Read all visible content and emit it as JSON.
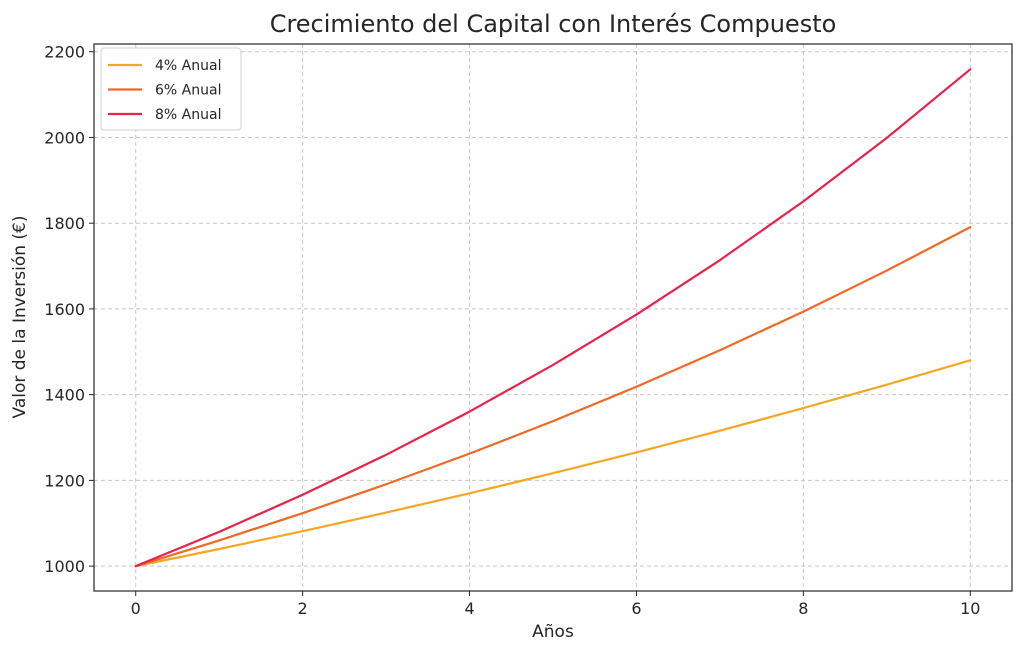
{
  "chart_data": {
    "type": "line",
    "title": "Crecimiento del Capital con Interés Compuesto",
    "xlabel": "Años",
    "ylabel": "Valor de la Inversión (€)",
    "x": [
      0,
      1,
      2,
      3,
      4,
      5,
      6,
      7,
      8,
      9,
      10
    ],
    "xlim": [
      -0.5,
      10.5
    ],
    "ylim": [
      942,
      2218
    ],
    "xticks": [
      0,
      2,
      4,
      6,
      8,
      10
    ],
    "yticks": [
      1000,
      1200,
      1400,
      1600,
      1800,
      2000,
      2200
    ],
    "xtick_labels": [
      "0",
      "2",
      "4",
      "6",
      "8",
      "10"
    ],
    "ytick_labels": [
      "1000",
      "1200",
      "1400",
      "1600",
      "1800",
      "2000",
      "2200"
    ],
    "grid": true,
    "legend_position": "top-left",
    "series": [
      {
        "name": "4% Anual",
        "color": "#f5a623",
        "values": [
          1000,
          1040,
          1081.6,
          1124.9,
          1169.9,
          1216.7,
          1265.3,
          1315.9,
          1368.6,
          1423.3,
          1480.2
        ]
      },
      {
        "name": "6% Anual",
        "color": "#ee6a24",
        "values": [
          1000,
          1060,
          1123.6,
          1191.0,
          1262.5,
          1338.2,
          1418.5,
          1503.6,
          1593.8,
          1689.5,
          1790.8
        ]
      },
      {
        "name": "8% Anual",
        "color": "#e8224a",
        "values": [
          1000,
          1080,
          1166.4,
          1259.7,
          1360.5,
          1469.3,
          1586.9,
          1713.8,
          1850.9,
          1999.0,
          2158.9
        ]
      }
    ]
  }
}
